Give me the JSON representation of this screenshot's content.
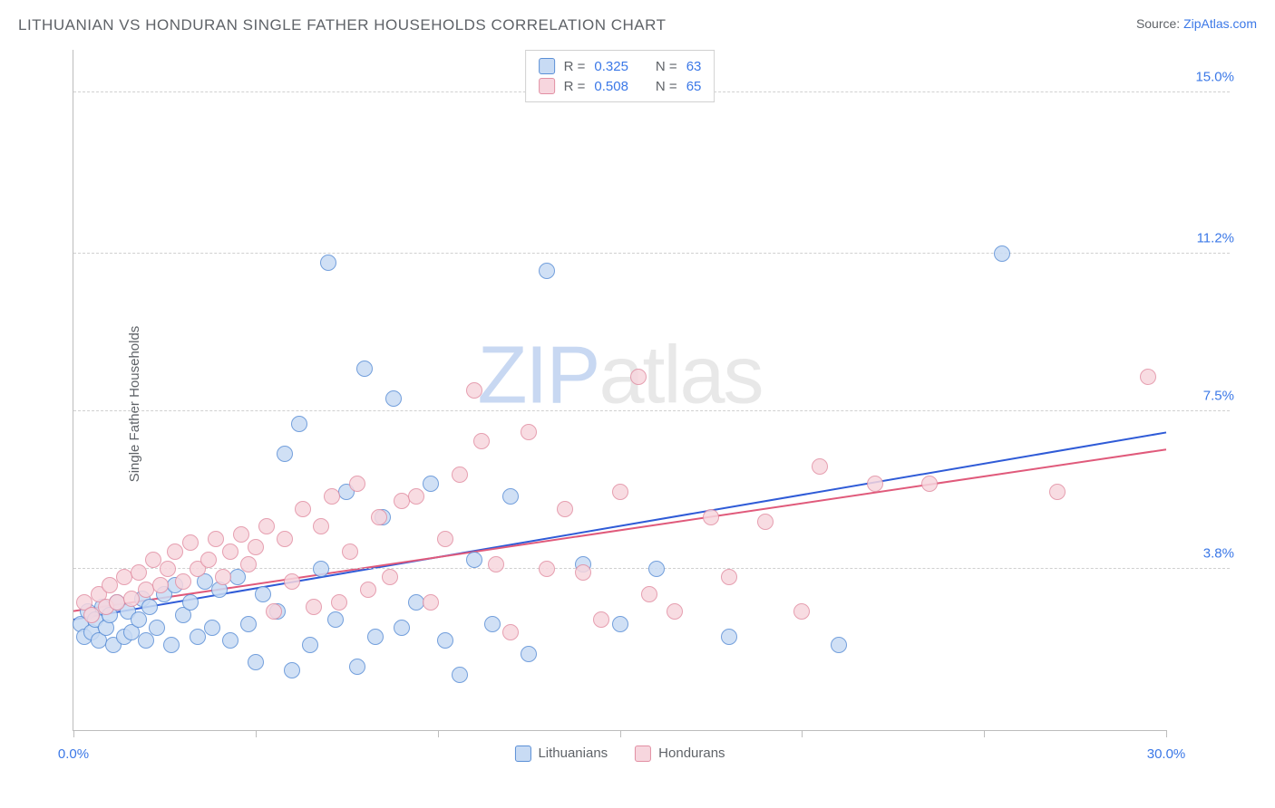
{
  "title": "LITHUANIAN VS HONDURAN SINGLE FATHER HOUSEHOLDS CORRELATION CHART",
  "source_prefix": "Source: ",
  "source_link": "ZipAtlas.com",
  "ylabel": "Single Father Households",
  "watermark": {
    "part1": "ZIP",
    "part2": "atlas"
  },
  "chart": {
    "type": "scatter",
    "background_color": "#ffffff",
    "grid_color": "#d0d0d0",
    "axis_color": "#bdbdbd",
    "tick_label_color": "#3b78e7",
    "text_color": "#5f6368",
    "xlim": [
      0,
      30
    ],
    "ylim": [
      0,
      16
    ],
    "x_ticks": [
      0,
      5,
      10,
      15,
      20,
      25,
      30
    ],
    "x_labels": [
      [
        0,
        "0.0%"
      ],
      [
        30,
        "30.0%"
      ]
    ],
    "y_gridlines": [
      3.8,
      7.5,
      11.2,
      15.0
    ],
    "y_labels": [
      [
        3.8,
        "3.8%"
      ],
      [
        7.5,
        "7.5%"
      ],
      [
        11.2,
        "11.2%"
      ],
      [
        15.0,
        "15.0%"
      ]
    ],
    "point_radius": 9,
    "point_stroke_width": 1.2,
    "trend_width": 2,
    "series": [
      {
        "name": "Lithuanians",
        "fill": "#c8dbf4",
        "stroke": "#5b8fd6",
        "line_color": "#2f5bd7",
        "R": "0.325",
        "N": "63",
        "trend": {
          "x1": 0,
          "y1": 2.6,
          "x2": 30,
          "y2": 7.0
        },
        "points": [
          [
            0.2,
            2.5
          ],
          [
            0.3,
            2.2
          ],
          [
            0.4,
            2.8
          ],
          [
            0.5,
            2.3
          ],
          [
            0.6,
            2.6
          ],
          [
            0.7,
            2.1
          ],
          [
            0.8,
            2.9
          ],
          [
            0.9,
            2.4
          ],
          [
            1.0,
            2.7
          ],
          [
            1.1,
            2.0
          ],
          [
            1.2,
            3.0
          ],
          [
            1.4,
            2.2
          ],
          [
            1.5,
            2.8
          ],
          [
            1.6,
            2.3
          ],
          [
            1.8,
            2.6
          ],
          [
            1.9,
            3.1
          ],
          [
            2.0,
            2.1
          ],
          [
            2.1,
            2.9
          ],
          [
            2.3,
            2.4
          ],
          [
            2.5,
            3.2
          ],
          [
            2.7,
            2.0
          ],
          [
            2.8,
            3.4
          ],
          [
            3.0,
            2.7
          ],
          [
            3.2,
            3.0
          ],
          [
            3.4,
            2.2
          ],
          [
            3.6,
            3.5
          ],
          [
            3.8,
            2.4
          ],
          [
            4.0,
            3.3
          ],
          [
            4.3,
            2.1
          ],
          [
            4.5,
            3.6
          ],
          [
            4.8,
            2.5
          ],
          [
            5.0,
            1.6
          ],
          [
            5.2,
            3.2
          ],
          [
            5.6,
            2.8
          ],
          [
            5.8,
            6.5
          ],
          [
            6.0,
            1.4
          ],
          [
            6.2,
            7.2
          ],
          [
            6.5,
            2.0
          ],
          [
            6.8,
            3.8
          ],
          [
            7.0,
            11.0
          ],
          [
            7.2,
            2.6
          ],
          [
            7.5,
            5.6
          ],
          [
            7.8,
            1.5
          ],
          [
            8.0,
            8.5
          ],
          [
            8.3,
            2.2
          ],
          [
            8.5,
            5.0
          ],
          [
            8.8,
            7.8
          ],
          [
            9.0,
            2.4
          ],
          [
            9.4,
            3.0
          ],
          [
            9.8,
            5.8
          ],
          [
            10.2,
            2.1
          ],
          [
            10.6,
            1.3
          ],
          [
            11.0,
            4.0
          ],
          [
            11.5,
            2.5
          ],
          [
            12.0,
            5.5
          ],
          [
            12.5,
            1.8
          ],
          [
            13.0,
            10.8
          ],
          [
            14.0,
            3.9
          ],
          [
            15.0,
            2.5
          ],
          [
            16.0,
            3.8
          ],
          [
            18.0,
            2.2
          ],
          [
            21.0,
            2.0
          ],
          [
            25.5,
            11.2
          ]
        ]
      },
      {
        "name": "Hondurans",
        "fill": "#f7d6de",
        "stroke": "#e28fa3",
        "line_color": "#e05a7b",
        "R": "0.508",
        "N": "65",
        "trend": {
          "x1": 0,
          "y1": 2.8,
          "x2": 30,
          "y2": 6.6
        },
        "points": [
          [
            0.3,
            3.0
          ],
          [
            0.5,
            2.7
          ],
          [
            0.7,
            3.2
          ],
          [
            0.9,
            2.9
          ],
          [
            1.0,
            3.4
          ],
          [
            1.2,
            3.0
          ],
          [
            1.4,
            3.6
          ],
          [
            1.6,
            3.1
          ],
          [
            1.8,
            3.7
          ],
          [
            2.0,
            3.3
          ],
          [
            2.2,
            4.0
          ],
          [
            2.4,
            3.4
          ],
          [
            2.6,
            3.8
          ],
          [
            2.8,
            4.2
          ],
          [
            3.0,
            3.5
          ],
          [
            3.2,
            4.4
          ],
          [
            3.4,
            3.8
          ],
          [
            3.7,
            4.0
          ],
          [
            3.9,
            4.5
          ],
          [
            4.1,
            3.6
          ],
          [
            4.3,
            4.2
          ],
          [
            4.6,
            4.6
          ],
          [
            4.8,
            3.9
          ],
          [
            5.0,
            4.3
          ],
          [
            5.3,
            4.8
          ],
          [
            5.5,
            2.8
          ],
          [
            5.8,
            4.5
          ],
          [
            6.0,
            3.5
          ],
          [
            6.3,
            5.2
          ],
          [
            6.6,
            2.9
          ],
          [
            6.8,
            4.8
          ],
          [
            7.1,
            5.5
          ],
          [
            7.3,
            3.0
          ],
          [
            7.6,
            4.2
          ],
          [
            7.8,
            5.8
          ],
          [
            8.1,
            3.3
          ],
          [
            8.4,
            5.0
          ],
          [
            8.7,
            3.6
          ],
          [
            9.0,
            5.4
          ],
          [
            9.4,
            5.5
          ],
          [
            9.8,
            3.0
          ],
          [
            10.2,
            4.5
          ],
          [
            10.6,
            6.0
          ],
          [
            11.0,
            8.0
          ],
          [
            11.2,
            6.8
          ],
          [
            11.6,
            3.9
          ],
          [
            12.0,
            2.3
          ],
          [
            12.5,
            7.0
          ],
          [
            13.0,
            3.8
          ],
          [
            13.5,
            5.2
          ],
          [
            14.0,
            3.7
          ],
          [
            14.5,
            2.6
          ],
          [
            15.0,
            5.6
          ],
          [
            15.8,
            3.2
          ],
          [
            16.5,
            2.8
          ],
          [
            17.5,
            5.0
          ],
          [
            18.0,
            3.6
          ],
          [
            19.0,
            4.9
          ],
          [
            20.0,
            2.8
          ],
          [
            20.5,
            6.2
          ],
          [
            22.0,
            5.8
          ],
          [
            23.5,
            5.8
          ],
          [
            27.0,
            5.6
          ],
          [
            29.5,
            8.3
          ],
          [
            15.5,
            8.3
          ]
        ]
      }
    ]
  },
  "legend_top": {
    "r_label": "R =",
    "n_label": "N ="
  },
  "legend_bottom": [
    {
      "label": "Lithuanians",
      "series": 0
    },
    {
      "label": "Hondurans",
      "series": 1
    }
  ]
}
